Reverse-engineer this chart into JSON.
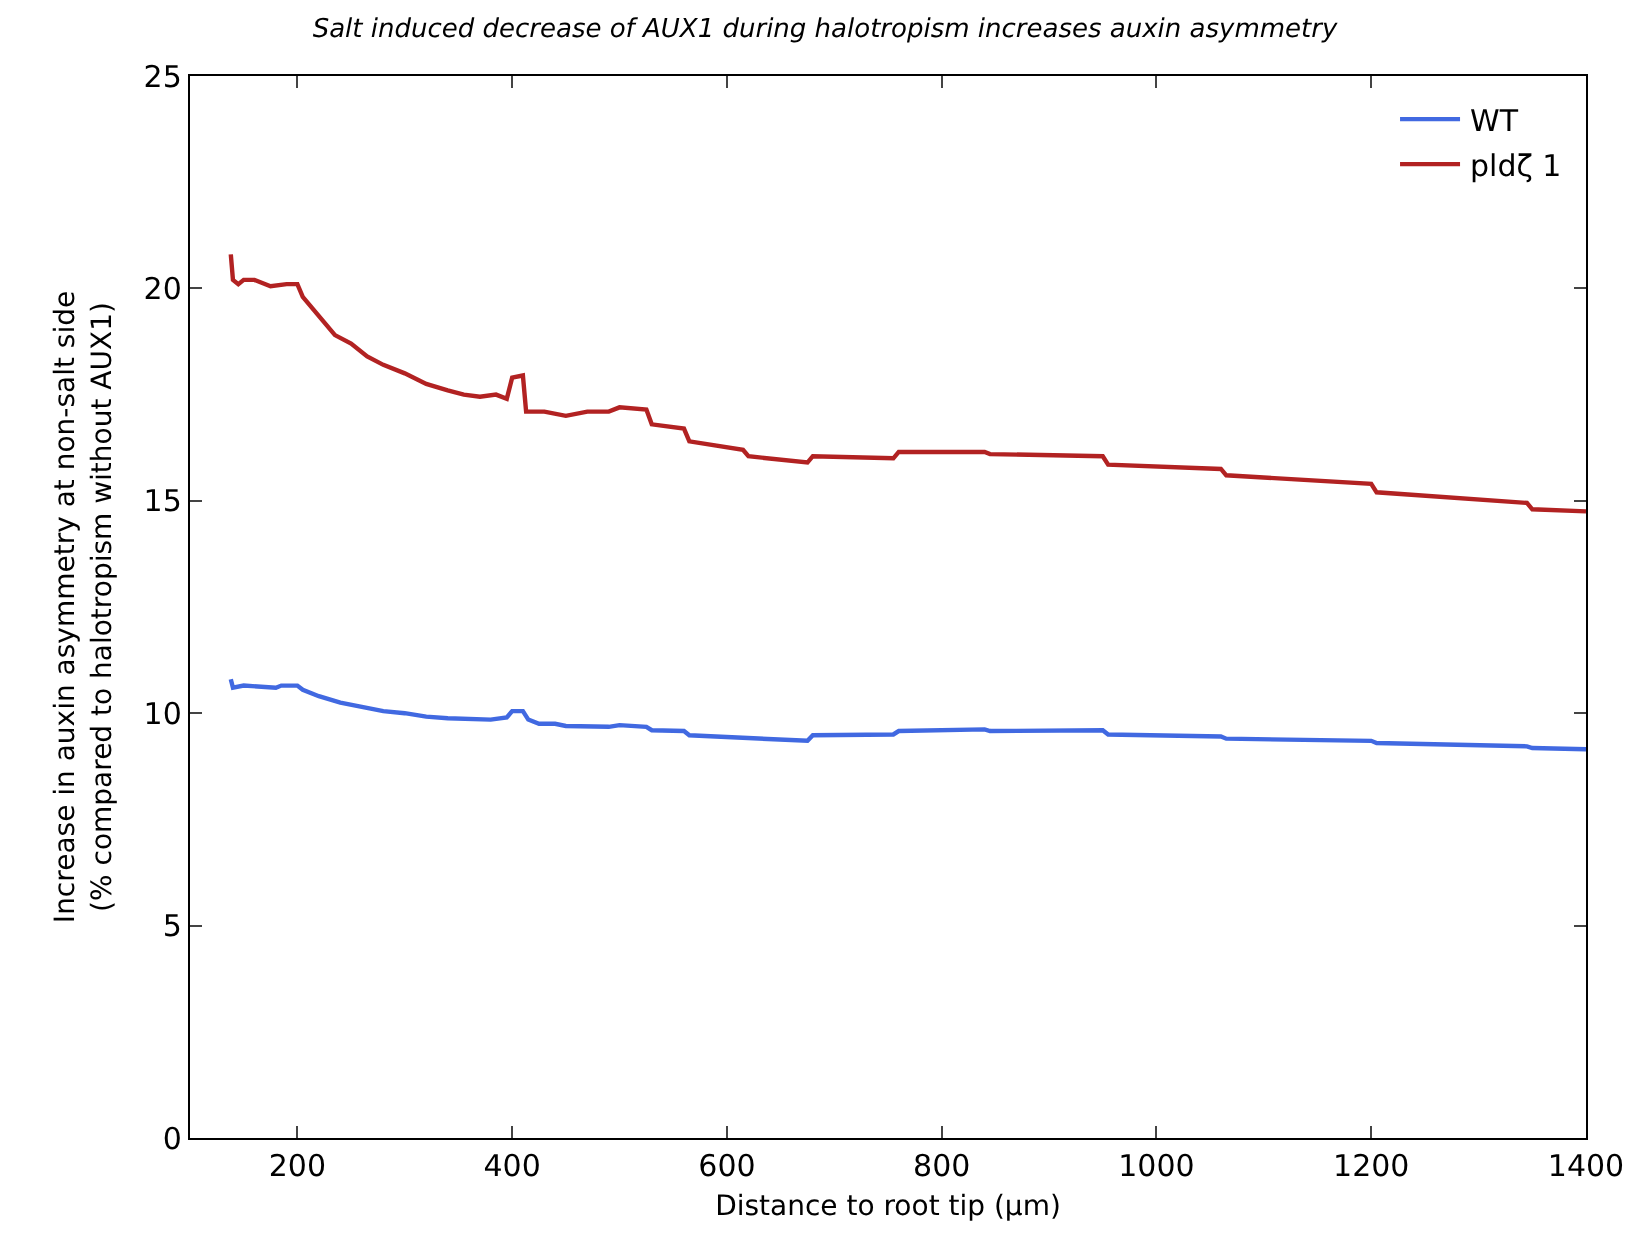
{
  "chart_data": {
    "type": "line",
    "title": "Salt induced decrease of AUX1 during halotropism increases auxin asymmetry",
    "xlabel": "Distance to root tip (μm)",
    "ylabel": "Increase in auxin asymmetry at non-salt side\n(% compared to halotropism without AUX1)",
    "xlim": [
      100,
      1400
    ],
    "xticks": [
      200,
      400,
      600,
      800,
      1000,
      1200,
      1400
    ],
    "ylim": [
      0,
      25
    ],
    "yticks": [
      0,
      5,
      10,
      15,
      20,
      25
    ],
    "legend": "top right",
    "marker": "none",
    "line_style": "solid",
    "series": [
      {
        "name": "WT",
        "color": "#4169e1",
        "x": [
          138,
          140,
          150,
          180,
          185,
          200,
          205,
          220,
          240,
          260,
          280,
          300,
          320,
          340,
          380,
          395,
          400,
          410,
          415,
          425,
          440,
          450,
          490,
          500,
          525,
          530,
          560,
          565,
          675,
          680,
          755,
          760,
          840,
          845,
          950,
          955,
          1060,
          1065,
          1200,
          1205,
          1345,
          1350,
          1400
        ],
        "values": [
          10.8,
          10.6,
          10.65,
          10.6,
          10.65,
          10.65,
          10.55,
          10.4,
          10.25,
          10.15,
          10.05,
          10.0,
          9.92,
          9.88,
          9.85,
          9.9,
          10.05,
          10.05,
          9.85,
          9.75,
          9.75,
          9.7,
          9.68,
          9.72,
          9.68,
          9.6,
          9.58,
          9.48,
          9.35,
          9.48,
          9.5,
          9.58,
          9.62,
          9.58,
          9.6,
          9.5,
          9.45,
          9.4,
          9.35,
          9.3,
          9.22,
          9.18,
          9.15
        ]
      },
      {
        "name": "pldζ 1",
        "color": "#b22222",
        "x": [
          138,
          140,
          145,
          150,
          160,
          175,
          190,
          200,
          205,
          215,
          225,
          235,
          250,
          265,
          280,
          300,
          320,
          340,
          355,
          370,
          385,
          395,
          400,
          410,
          413,
          430,
          450,
          470,
          490,
          500,
          525,
          530,
          560,
          565,
          615,
          620,
          675,
          680,
          755,
          760,
          840,
          845,
          950,
          955,
          1060,
          1065,
          1200,
          1205,
          1345,
          1350,
          1400
        ],
        "values": [
          20.8,
          20.2,
          20.1,
          20.2,
          20.2,
          20.05,
          20.1,
          20.1,
          19.8,
          19.5,
          19.2,
          18.9,
          18.7,
          18.4,
          18.2,
          18.0,
          17.75,
          17.6,
          17.5,
          17.45,
          17.5,
          17.4,
          17.9,
          17.95,
          17.1,
          17.1,
          17.0,
          17.1,
          17.1,
          17.2,
          17.15,
          16.8,
          16.7,
          16.4,
          16.2,
          16.05,
          15.9,
          16.05,
          16.0,
          16.15,
          16.15,
          16.1,
          16.05,
          15.85,
          15.75,
          15.6,
          15.4,
          15.2,
          14.95,
          14.8,
          14.75
        ]
      }
    ]
  }
}
